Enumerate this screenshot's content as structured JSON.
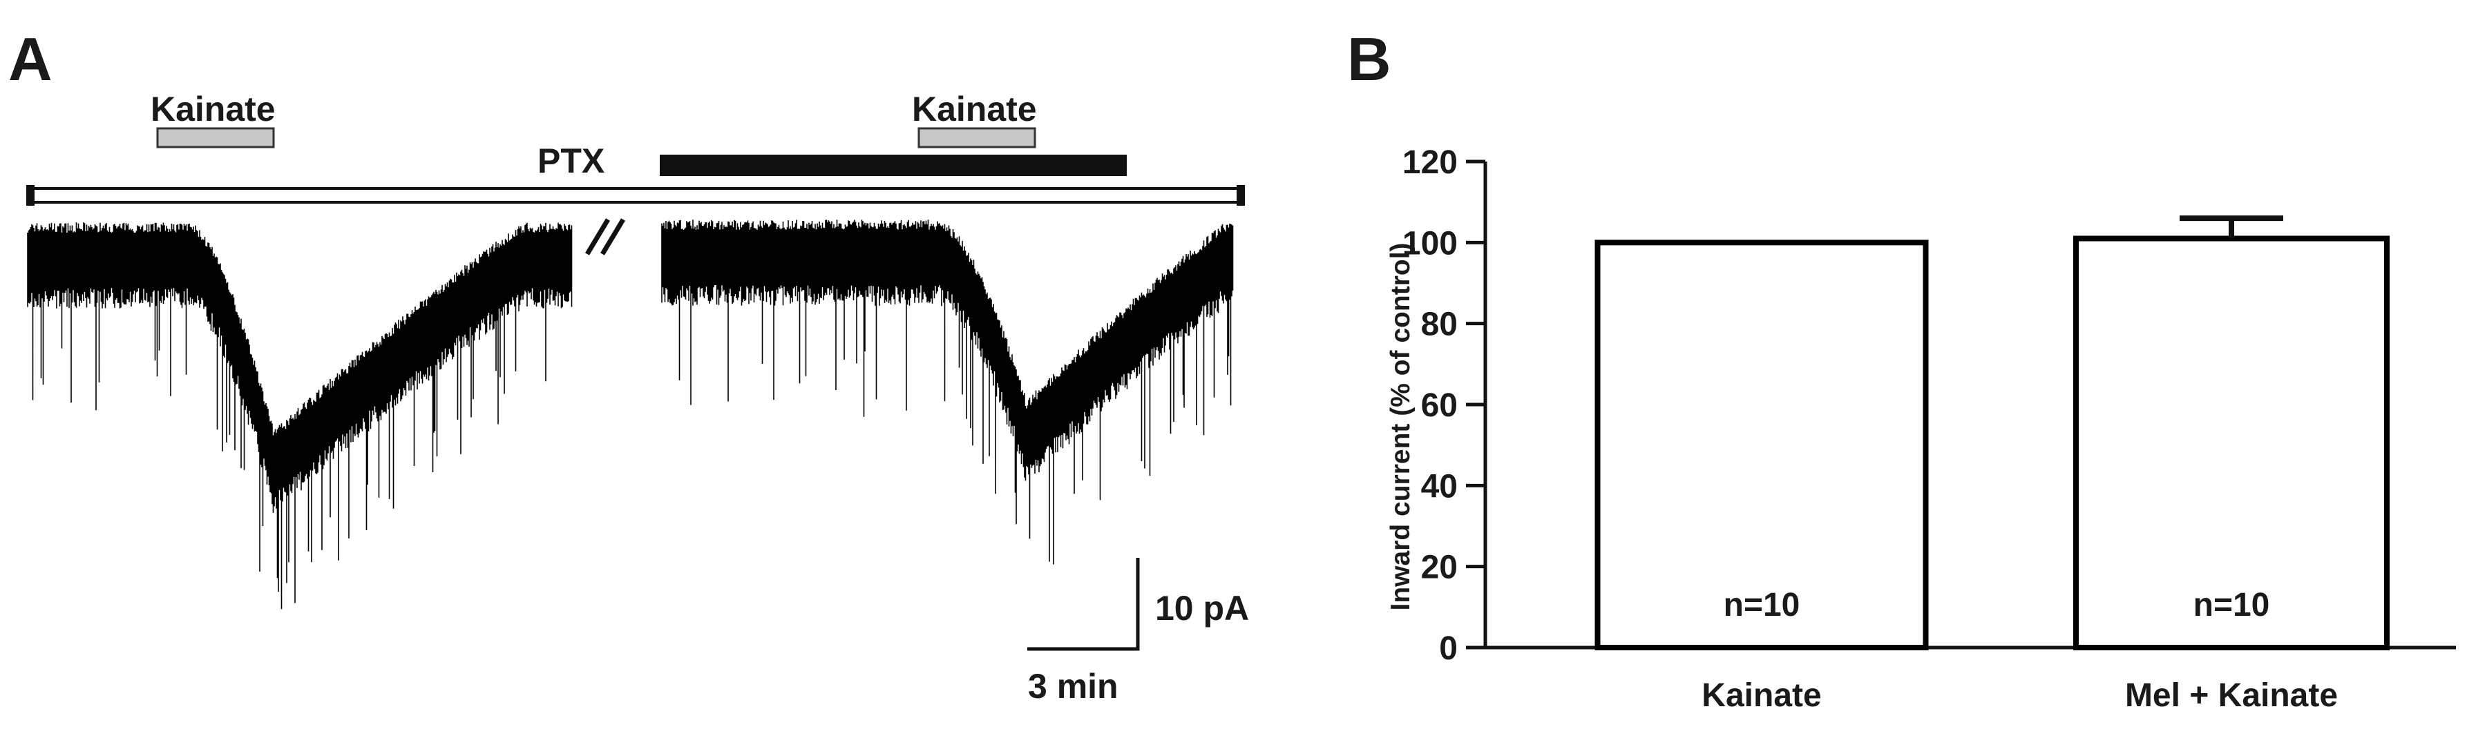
{
  "panel_a": {
    "label": "A",
    "bars": {
      "kainate_1": "Kainate",
      "kainate_2": "Kainate",
      "ptx": "PTX"
    },
    "scale_bar": {
      "current": "10 pA",
      "time": "3 min"
    }
  },
  "panel_b": {
    "label": "B"
  },
  "chart_data": {
    "type": "bar",
    "title": "",
    "categories": [
      "Kainate",
      "Mel + Kainate"
    ],
    "values": [
      100,
      101
    ],
    "errors": [
      0,
      5
    ],
    "bar_labels": [
      "n=10",
      "n=10"
    ],
    "xlabel": "",
    "ylabel": "Inward current (% of control)",
    "ylim": [
      0,
      120
    ],
    "yticks": [
      0,
      20,
      40,
      60,
      80,
      100,
      120
    ],
    "grid": false,
    "colors": {
      "bar_fill": "#ffffff",
      "bar_stroke": "#000000"
    }
  }
}
